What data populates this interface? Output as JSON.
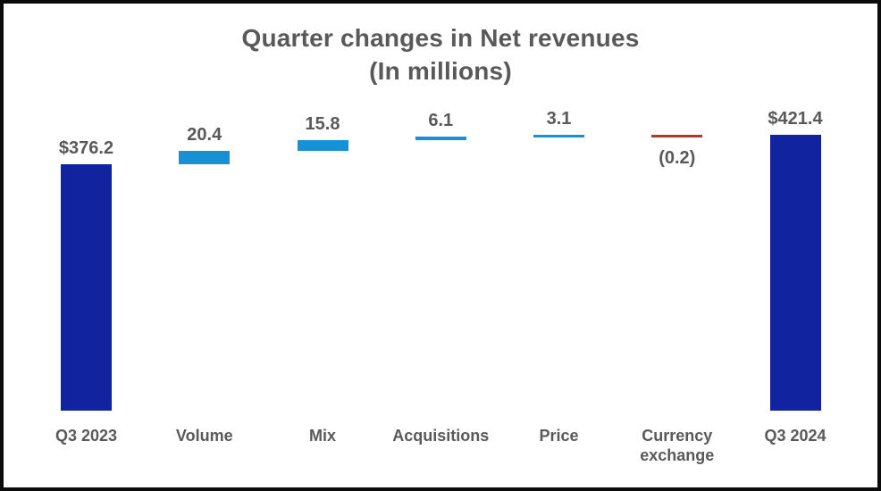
{
  "page": {
    "background": "#ffffff",
    "frame_border_color": "#0b0b0b",
    "text_color": "#595959"
  },
  "chart_data": {
    "type": "waterfall",
    "title": "Quarter changes in Net revenues",
    "subtitle": "(In millions)",
    "categories": [
      "Q3 2023",
      "Volume",
      "Mix",
      "Acquisitions",
      "Price",
      "Currency exchange",
      "Q3 2024"
    ],
    "series": [
      {
        "category": "Q3 2023",
        "value": 376.2,
        "kind": "total",
        "label": "$376.2"
      },
      {
        "category": "Volume",
        "value": 20.4,
        "kind": "delta",
        "label": "20.4"
      },
      {
        "category": "Mix",
        "value": 15.8,
        "kind": "delta",
        "label": "15.8"
      },
      {
        "category": "Acquisitions",
        "value": 6.1,
        "kind": "delta",
        "label": "6.1"
      },
      {
        "category": "Price",
        "value": 3.1,
        "kind": "delta",
        "label": "3.1"
      },
      {
        "category": "Currency exchange",
        "value": -0.2,
        "kind": "delta",
        "label": "(0.2)"
      },
      {
        "category": "Q3 2024",
        "value": 421.4,
        "kind": "total",
        "label": "$421.4"
      }
    ],
    "colors": {
      "total": "#11239E",
      "increase": "#1791D3",
      "decrease": "#AC3C2A",
      "text": "#595959"
    },
    "layout": {
      "legend": false,
      "grid": false,
      "axis_lines": false,
      "value_label_position": "outside-end",
      "baseline_value": 0
    }
  }
}
